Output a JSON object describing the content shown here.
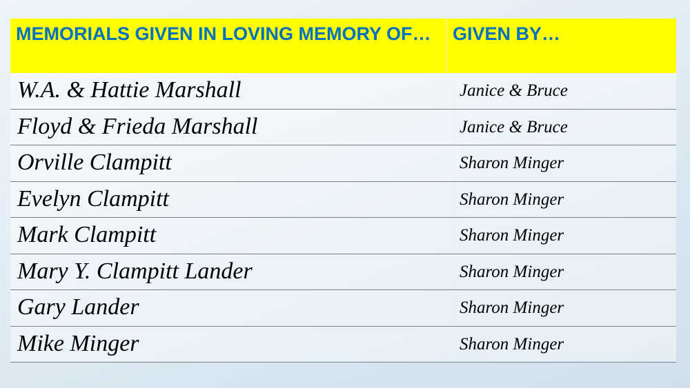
{
  "header": {
    "col1": "MEMORIALS GIVEN IN LOVING MEMORY OF…",
    "col2": "GIVEN BY…"
  },
  "colors": {
    "header_bg": "#ffff00",
    "header_text": "#0070c0"
  },
  "rows": [
    {
      "memory_of": "W.A. & Hattie Marshall",
      "given_by": "Janice & Bruce"
    },
    {
      "memory_of": "Floyd & Frieda Marshall",
      "given_by": "Janice & Bruce"
    },
    {
      "memory_of": "Orville Clampitt",
      "given_by": "Sharon Minger"
    },
    {
      "memory_of": "Evelyn Clampitt",
      "given_by": "Sharon Minger"
    },
    {
      "memory_of": "Mark Clampitt",
      "given_by": "Sharon Minger"
    },
    {
      "memory_of": "Mary Y. Clampitt Lander",
      "given_by": "Sharon Minger"
    },
    {
      "memory_of": "Gary Lander",
      "given_by": "Sharon Minger"
    },
    {
      "memory_of": "Mike Minger",
      "given_by": "Sharon Minger"
    }
  ]
}
